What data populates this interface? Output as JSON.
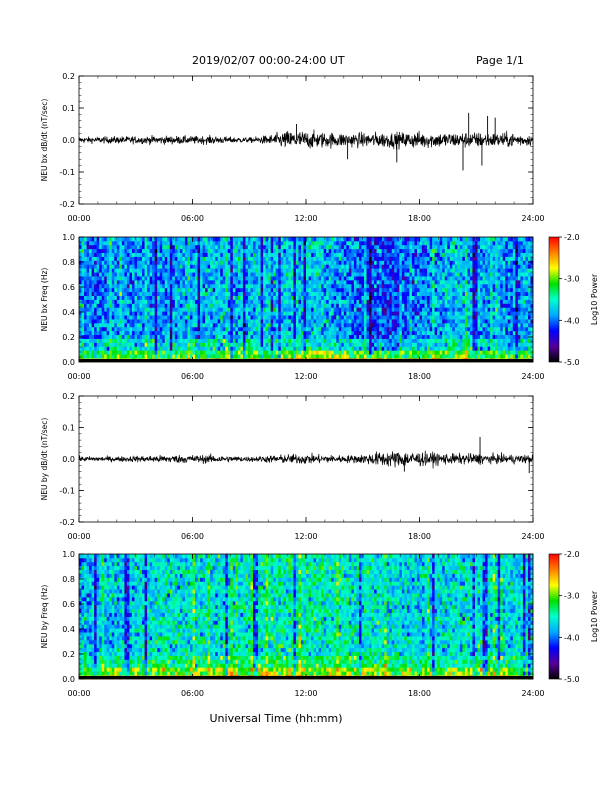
{
  "header": {
    "title": "2019/02/07  00:00-24:00 UT",
    "page": "Page 1/1"
  },
  "colors": {
    "trace": "#000000",
    "colormap": [
      "#000000",
      "#55009a",
      "#0000ff",
      "#00aaff",
      "#00ffcc",
      "#00e000",
      "#ffff00",
      "#ff8000",
      "#ff0000"
    ]
  },
  "xaxis": {
    "label": "Universal Time (hh:mm)",
    "range_hours": [
      0,
      24
    ],
    "ticks": [
      "00:00",
      "06:00",
      "12:00",
      "18:00",
      "24:00"
    ]
  },
  "chart_data": [
    {
      "type": "line",
      "id": "bx-waveform",
      "ylabel": "NEU bx dB/dt (nT/sec)",
      "ylim": [
        -0.2,
        0.2
      ],
      "yticks": [
        "0.2",
        "0.1",
        "0.0",
        "-0.1",
        "-0.2"
      ],
      "x_hours": [
        0,
        1,
        2,
        3,
        4,
        5,
        6,
        7,
        8,
        9,
        10,
        11,
        12,
        13,
        14,
        15,
        16,
        17,
        18,
        19,
        20,
        21,
        22,
        23,
        24
      ],
      "amplitude_envelope": [
        0.012,
        0.012,
        0.014,
        0.014,
        0.016,
        0.016,
        0.015,
        0.016,
        0.012,
        0.01,
        0.018,
        0.035,
        0.035,
        0.03,
        0.028,
        0.028,
        0.03,
        0.03,
        0.032,
        0.03,
        0.03,
        0.03,
        0.028,
        0.028,
        0.02
      ],
      "spikes": [
        {
          "x": 11.5,
          "y": 0.05
        },
        {
          "x": 14.2,
          "y": -0.06
        },
        {
          "x": 16.8,
          "y": -0.07
        },
        {
          "x": 20.3,
          "y": -0.095
        },
        {
          "x": 20.6,
          "y": 0.085
        },
        {
          "x": 21.3,
          "y": -0.08
        },
        {
          "x": 21.6,
          "y": 0.075
        },
        {
          "x": 22.0,
          "y": 0.07
        }
      ]
    },
    {
      "type": "heatmap",
      "id": "bx-spectrogram",
      "ylabel": "NEU bx Freq (Hz)",
      "ylim": [
        0.0,
        1.0
      ],
      "yticks": [
        "1.0",
        "0.8",
        "0.6",
        "0.4",
        "0.2",
        "0.0"
      ],
      "colorbar": {
        "label": "Log10 Power",
        "range": [
          -5.0,
          -2.0
        ],
        "ticks": [
          "-2.0",
          "-3.0",
          "-4.0",
          "-5.0"
        ]
      },
      "x_hours": [
        0,
        2,
        4,
        6,
        8,
        10,
        12,
        14,
        16,
        18,
        20,
        22,
        24
      ],
      "background_log10_power": [
        -4.0,
        -3.9,
        -3.9,
        -3.8,
        -3.8,
        -3.7,
        -3.7,
        -3.9,
        -4.2,
        -4.0,
        -3.7,
        -3.9,
        -3.9
      ],
      "low_freq_log10_power": [
        -2.9,
        -2.9,
        -2.9,
        -2.8,
        -2.8,
        -2.6,
        -2.4,
        -2.5,
        -2.6,
        -2.6,
        -2.7,
        -2.8,
        -2.8
      ]
    },
    {
      "type": "line",
      "id": "by-waveform",
      "ylabel": "NEU by dB/dt (nT/sec)",
      "ylim": [
        -0.2,
        0.2
      ],
      "yticks": [
        "0.2",
        "0.1",
        "0.0",
        "-0.1",
        "-0.2"
      ],
      "x_hours": [
        0,
        1,
        2,
        3,
        4,
        5,
        6,
        7,
        8,
        9,
        10,
        11,
        12,
        13,
        14,
        15,
        16,
        17,
        18,
        19,
        20,
        21,
        22,
        23,
        24
      ],
      "amplitude_envelope": [
        0.01,
        0.01,
        0.01,
        0.012,
        0.014,
        0.016,
        0.016,
        0.016,
        0.012,
        0.01,
        0.014,
        0.018,
        0.02,
        0.016,
        0.014,
        0.018,
        0.03,
        0.032,
        0.028,
        0.024,
        0.02,
        0.022,
        0.018,
        0.018,
        0.016
      ],
      "spikes": [
        {
          "x": 17.2,
          "y": -0.04
        },
        {
          "x": 21.2,
          "y": 0.07
        },
        {
          "x": 23.8,
          "y": -0.045
        }
      ]
    },
    {
      "type": "heatmap",
      "id": "by-spectrogram",
      "ylabel": "NEU by Freq (Hz)",
      "ylim": [
        0.0,
        1.0
      ],
      "yticks": [
        "1.0",
        "0.8",
        "0.6",
        "0.4",
        "0.2",
        "0.0"
      ],
      "colorbar": {
        "label": "Log10 Power",
        "range": [
          -5.0,
          -2.0
        ],
        "ticks": [
          "-2.0",
          "-3.0",
          "-4.0",
          "-5.0"
        ]
      },
      "x_hours": [
        0,
        2,
        4,
        6,
        8,
        10,
        12,
        14,
        16,
        18,
        20,
        22,
        24
      ],
      "background_log10_power": [
        -3.8,
        -3.7,
        -3.6,
        -3.6,
        -3.6,
        -3.5,
        -3.5,
        -3.5,
        -3.6,
        -3.7,
        -3.6,
        -3.6,
        -3.7
      ],
      "low_freq_log10_power": [
        -2.8,
        -2.8,
        -2.7,
        -2.7,
        -2.7,
        -2.6,
        -2.6,
        -2.7,
        -2.8,
        -2.8,
        -2.8,
        -2.8,
        -2.9
      ]
    }
  ]
}
